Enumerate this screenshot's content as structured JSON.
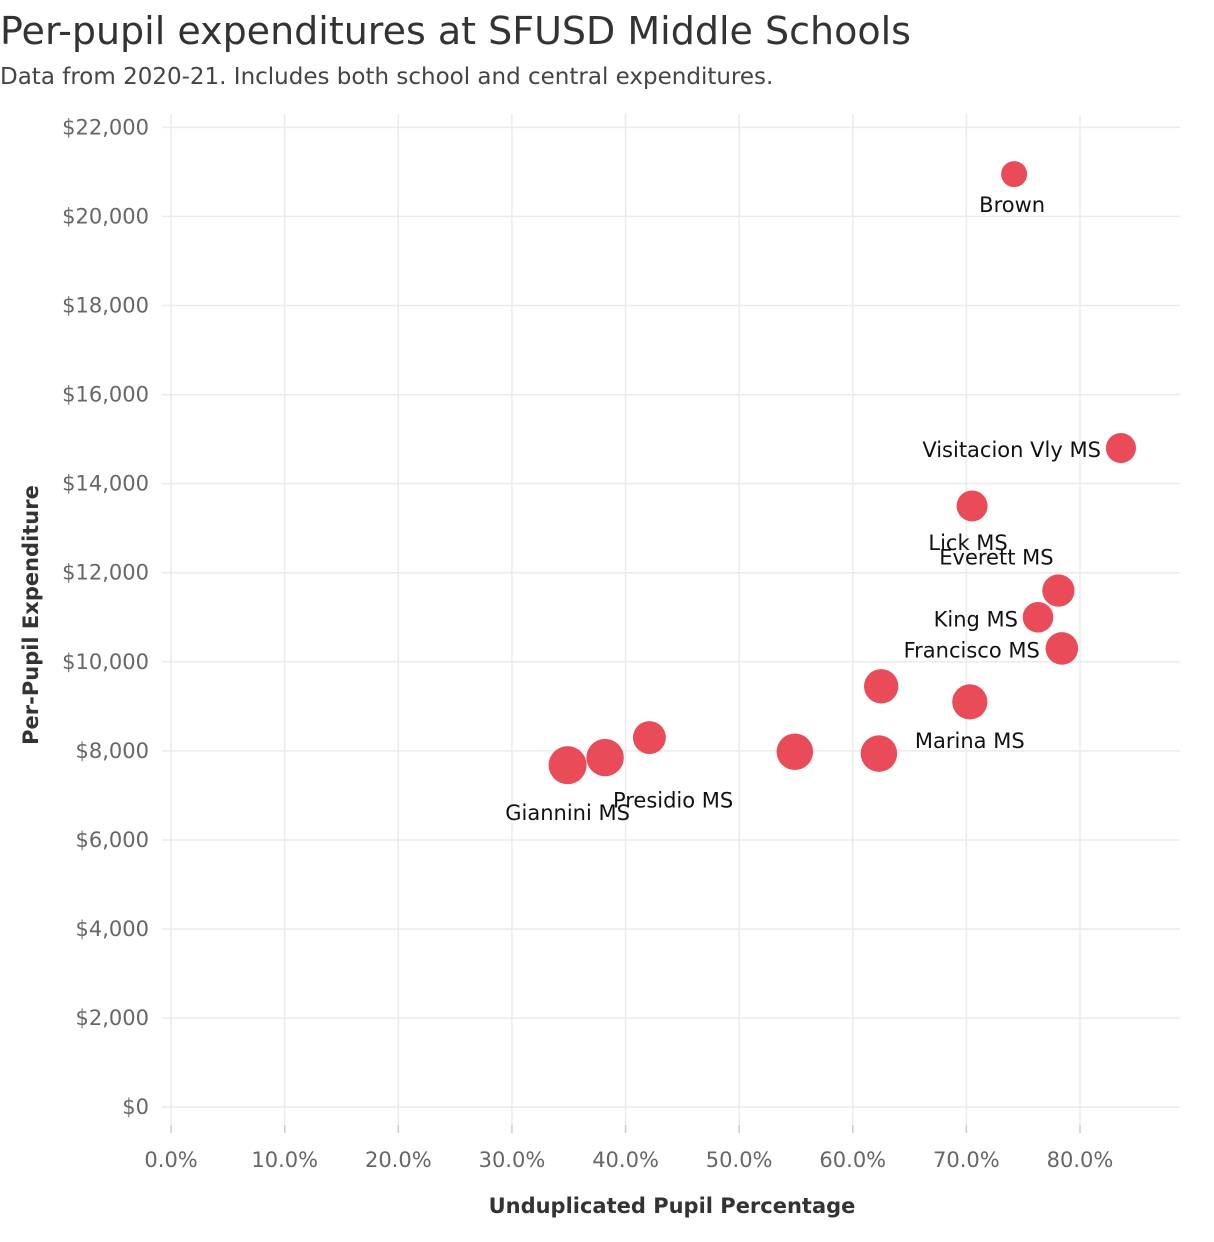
{
  "chart_data": {
    "type": "scatter",
    "title": "Per-pupil expenditures at SFUSD Middle Schools",
    "subtitle": "Data from 2020-21. Includes both school and central expenditures.",
    "xlabel": "Unduplicated Pupil Percentage",
    "ylabel": "Per-Pupil Expenditure",
    "xlim": [
      -0.008,
      0.888
    ],
    "ylim": [
      -400,
      22300
    ],
    "x_ticks": [
      0,
      0.1,
      0.2,
      0.3,
      0.4,
      0.5,
      0.6,
      0.7,
      0.8
    ],
    "x_tick_labels": [
      "0.0%",
      "10.0%",
      "20.0%",
      "30.0%",
      "40.0%",
      "50.0%",
      "60.0%",
      "70.0%",
      "80.0%"
    ],
    "y_ticks": [
      0,
      2000,
      4000,
      6000,
      8000,
      10000,
      12000,
      14000,
      16000,
      18000,
      20000,
      22000
    ],
    "y_tick_labels": [
      "$0",
      "$2,000",
      "$4,000",
      "$6,000",
      "$8,000",
      "$10,000",
      "$12,000",
      "$14,000",
      "$16,000",
      "$18,000",
      "$20,000",
      "$22,000"
    ],
    "grid": true,
    "point_color": "#e8414f",
    "size_scale": "point size proportional to enrollment (no legend shown)",
    "points": [
      {
        "label": "Brown",
        "x": 0.742,
        "y": 20950,
        "size": 0.25
      },
      {
        "label": "Visitacion Vly MS",
        "x": 0.836,
        "y": 14800,
        "size": 0.45
      },
      {
        "label": "Lick MS",
        "x": 0.705,
        "y": 13500,
        "size": 0.5
      },
      {
        "label": "Everett MS",
        "x": 0.781,
        "y": 11600,
        "size": 0.58
      },
      {
        "label": "King MS",
        "x": 0.763,
        "y": 11000,
        "size": 0.48
      },
      {
        "label": "Francisco MS",
        "x": 0.784,
        "y": 10300,
        "size": 0.6
      },
      {
        "label": "",
        "x": 0.625,
        "y": 9450,
        "size": 0.72
      },
      {
        "label": "Marina MS",
        "x": 0.703,
        "y": 9100,
        "size": 0.78
      },
      {
        "label": "",
        "x": 0.421,
        "y": 8300,
        "size": 0.62
      },
      {
        "label": "",
        "x": 0.549,
        "y": 7980,
        "size": 0.88
      },
      {
        "label": "",
        "x": 0.623,
        "y": 7940,
        "size": 0.88
      },
      {
        "label": "Presidio MS",
        "x": 0.382,
        "y": 7850,
        "size": 0.95
      },
      {
        "label": "Giannini MS",
        "x": 0.349,
        "y": 7680,
        "size": 1.0
      }
    ]
  }
}
